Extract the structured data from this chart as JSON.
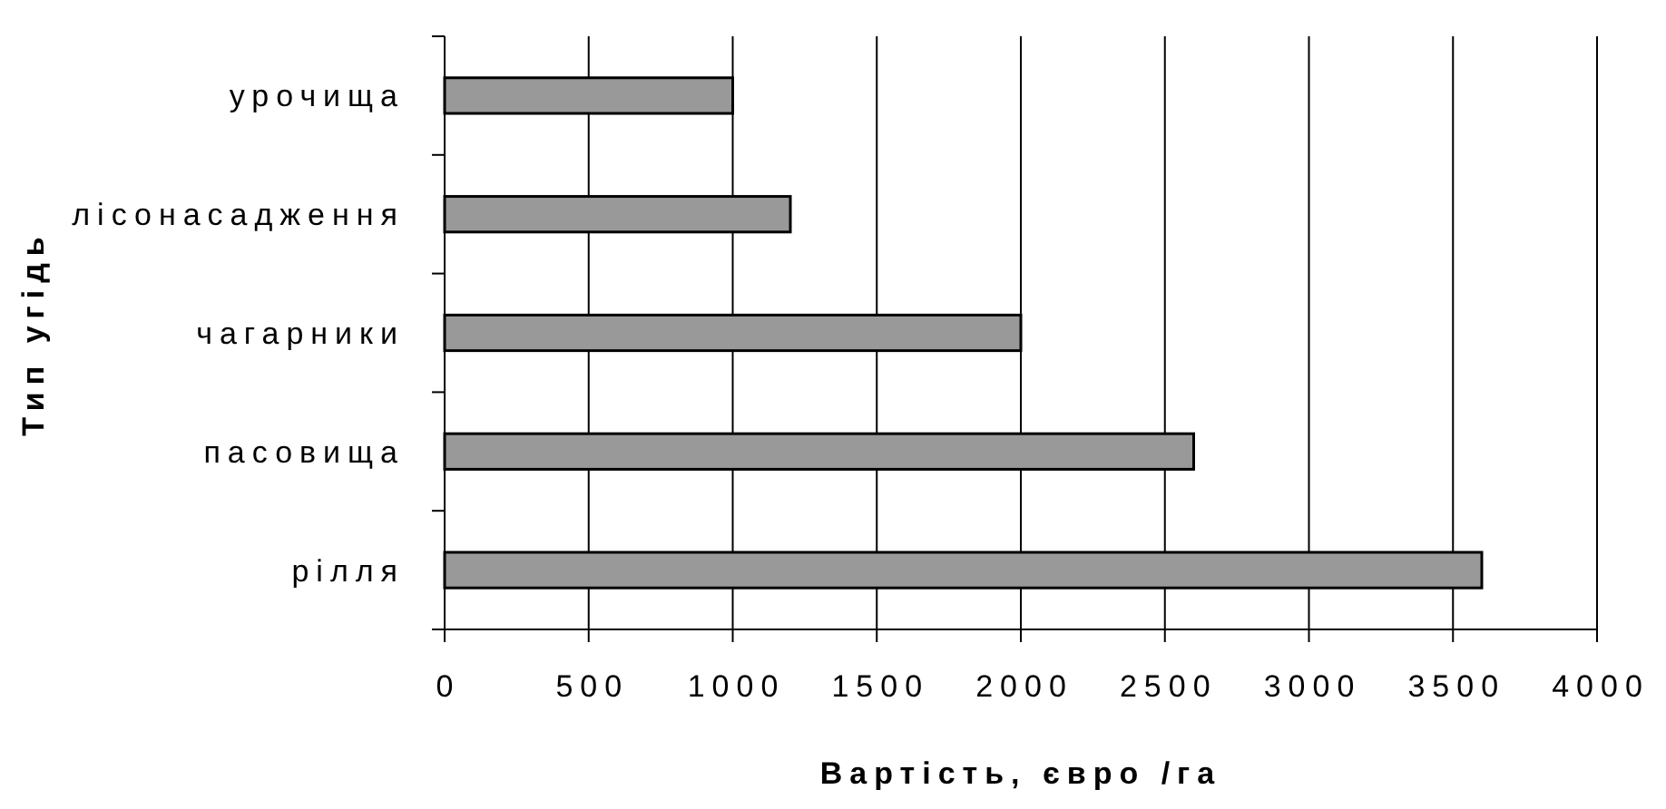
{
  "chart_data": {
    "type": "bar",
    "orientation": "horizontal",
    "categories": [
      "урочища",
      "лісонасадження",
      "чагарники",
      "пасовища",
      "рілля"
    ],
    "values": [
      1000,
      1200,
      2000,
      2600,
      3600
    ],
    "color": "#999999",
    "xlim": [
      0,
      4000
    ],
    "xticks": [
      0,
      500,
      1000,
      1500,
      2000,
      2500,
      3000,
      3500,
      4000
    ],
    "xlabel": "Вартість, євро /га",
    "ylabel": "Тип угідь",
    "grid": "x"
  }
}
